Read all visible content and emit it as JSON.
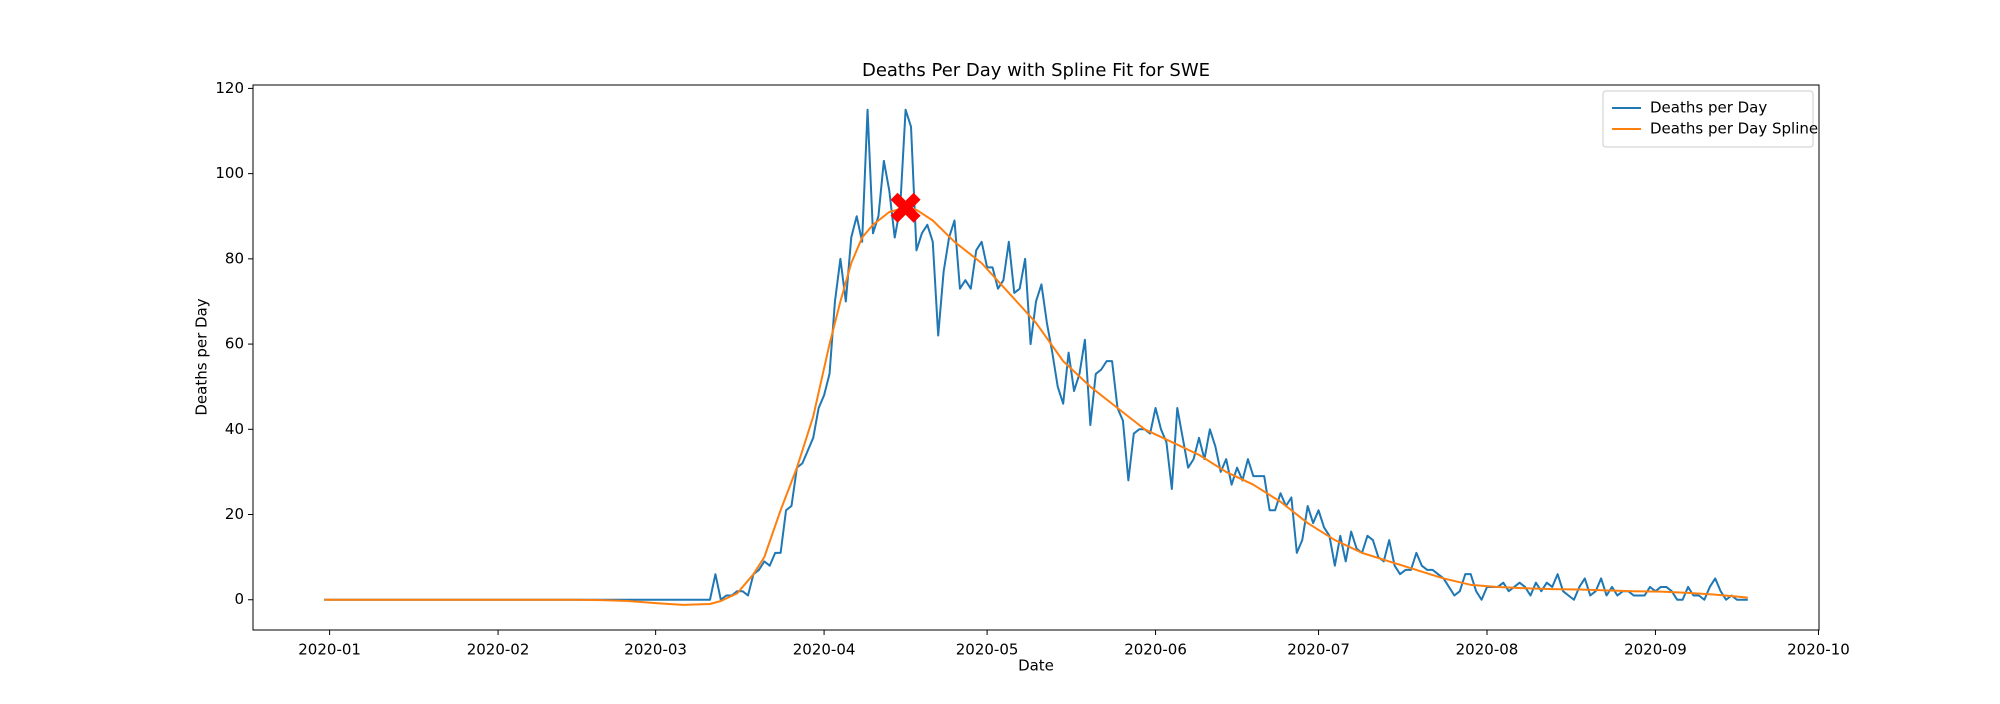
{
  "chart_data": {
    "type": "line",
    "title": "Deaths Per Day with Spline Fit for SWE",
    "x_label": "Date",
    "y_label": "Deaths per Day",
    "xlim": [
      -14.1,
      274.1
    ],
    "xticks": [
      {
        "value": 0,
        "label": "2020-01"
      },
      {
        "value": 31,
        "label": "2020-02"
      },
      {
        "value": 60,
        "label": "2020-03"
      },
      {
        "value": 91,
        "label": "2020-04"
      },
      {
        "value": 121,
        "label": "2020-05"
      },
      {
        "value": 152,
        "label": "2020-06"
      },
      {
        "value": 182,
        "label": "2020-07"
      },
      {
        "value": 213,
        "label": "2020-08"
      },
      {
        "value": 244,
        "label": "2020-09"
      },
      {
        "value": 274,
        "label": "2020-10"
      }
    ],
    "ylim": [
      -7.1,
      120.8
    ],
    "yticks": [
      0,
      20,
      40,
      60,
      80,
      100,
      120
    ],
    "legend": "upper right",
    "series": [
      {
        "name": "Deaths per Day",
        "color": "#1f77b4",
        "x": [
          -1,
          0,
          1,
          2,
          3,
          4,
          5,
          6,
          7,
          8,
          9,
          10,
          11,
          12,
          13,
          14,
          15,
          16,
          17,
          18,
          19,
          20,
          21,
          22,
          23,
          24,
          25,
          26,
          27,
          28,
          29,
          30,
          31,
          32,
          33,
          34,
          35,
          36,
          37,
          38,
          39,
          40,
          41,
          42,
          43,
          44,
          45,
          46,
          47,
          48,
          49,
          50,
          51,
          52,
          53,
          54,
          55,
          56,
          57,
          58,
          59,
          60,
          61,
          62,
          63,
          64,
          65,
          66,
          67,
          68,
          69,
          70,
          71,
          72,
          73,
          74,
          75,
          76,
          77,
          78,
          79,
          80,
          81,
          82,
          83,
          84,
          85,
          86,
          87,
          88,
          89,
          90,
          91,
          92,
          93,
          94,
          95,
          96,
          97,
          98,
          99,
          100,
          101,
          102,
          103,
          104,
          105,
          106,
          107,
          108,
          109,
          110,
          111,
          112,
          113,
          114,
          115,
          116,
          117,
          118,
          119,
          120,
          121,
          122,
          123,
          124,
          125,
          126,
          127,
          128,
          129,
          130,
          131,
          132,
          133,
          134,
          135,
          136,
          137,
          138,
          139,
          140,
          141,
          142,
          143,
          144,
          145,
          146,
          147,
          148,
          149,
          150,
          151,
          152,
          153,
          154,
          155,
          156,
          157,
          158,
          159,
          160,
          161,
          162,
          163,
          164,
          165,
          166,
          167,
          168,
          169,
          170,
          171,
          172,
          173,
          174,
          175,
          176,
          177,
          178,
          179,
          180,
          181,
          182,
          183,
          184,
          185,
          186,
          187,
          188,
          189,
          190,
          191,
          192,
          193,
          194,
          195,
          196,
          197,
          198,
          199,
          200,
          201,
          202,
          203,
          204,
          205,
          206,
          207,
          208,
          209,
          210,
          211,
          212,
          213,
          214,
          215,
          216,
          217,
          218,
          219,
          220,
          221,
          222,
          223,
          224,
          225,
          226,
          227,
          228,
          229,
          230,
          231,
          232,
          233,
          234,
          235,
          236,
          237,
          238,
          239,
          240,
          241,
          242,
          243,
          244,
          245,
          246,
          247,
          248,
          249,
          250,
          251,
          252,
          253,
          254,
          255,
          256,
          257,
          258,
          259,
          260,
          261
        ],
        "values": [
          0,
          0,
          0,
          0,
          0,
          0,
          0,
          0,
          0,
          0,
          0,
          0,
          0,
          0,
          0,
          0,
          0,
          0,
          0,
          0,
          0,
          0,
          0,
          0,
          0,
          0,
          0,
          0,
          0,
          0,
          0,
          0,
          0,
          0,
          0,
          0,
          0,
          0,
          0,
          0,
          0,
          0,
          0,
          0,
          0,
          0,
          0,
          0,
          0,
          0,
          0,
          0,
          0,
          0,
          0,
          0,
          0,
          0,
          0,
          0,
          0,
          0,
          0,
          0,
          0,
          0,
          0,
          0,
          0,
          0,
          0,
          0,
          6,
          0,
          1,
          1,
          2,
          2,
          1,
          6,
          7,
          9,
          8,
          11,
          11,
          21,
          22,
          31,
          32,
          35,
          38,
          45,
          48,
          53,
          70,
          80,
          70,
          85,
          90,
          84,
          115,
          86,
          90,
          103,
          96,
          85,
          92,
          115,
          111,
          82,
          86,
          88,
          84,
          62,
          77,
          85,
          89,
          73,
          75,
          73,
          82,
          84,
          78,
          78,
          73,
          75,
          84,
          72,
          73,
          80,
          60,
          70,
          74,
          65,
          58,
          50,
          46,
          58,
          49,
          53,
          61,
          41,
          53,
          54,
          56,
          56,
          45,
          42,
          28,
          39,
          40,
          40,
          39,
          45,
          40,
          37,
          26,
          45,
          38,
          31,
          33,
          38,
          33,
          40,
          36,
          30,
          33,
          27,
          31,
          28,
          33,
          29,
          29,
          29,
          21,
          21,
          25,
          22,
          24,
          11,
          14,
          22,
          18,
          21,
          17,
          15,
          8,
          15,
          9,
          16,
          12,
          11,
          15,
          14,
          10,
          9,
          14,
          8,
          6,
          7,
          7,
          11,
          8,
          7,
          7,
          6,
          5,
          3,
          1,
          2,
          6,
          6,
          2,
          0,
          3,
          3,
          3,
          4,
          2,
          3,
          4,
          3,
          1,
          4,
          2,
          4,
          3,
          6,
          2,
          1,
          0,
          3,
          5,
          1,
          2,
          5,
          1,
          3,
          1,
          2,
          2,
          1,
          1,
          1,
          3,
          2,
          3,
          3,
          2,
          0,
          0,
          3,
          1,
          1,
          0,
          3,
          5,
          2,
          0,
          1,
          0,
          0,
          0
        ]
      },
      {
        "name": "Deaths per Day Spline",
        "color": "#ff7f0e",
        "x": [
          -1,
          5,
          10,
          15,
          20,
          25,
          30,
          35,
          40,
          45,
          50,
          55,
          60,
          65,
          70,
          72,
          75,
          78,
          80,
          83,
          86,
          89,
          92,
          94,
          96,
          98,
          100,
          103,
          106,
          108,
          111,
          115,
          120,
          125,
          130,
          135,
          140,
          145,
          150,
          155,
          160,
          165,
          170,
          175,
          180,
          185,
          190,
          195,
          200,
          205,
          210,
          215,
          220,
          225,
          230,
          235,
          240,
          245,
          250,
          255,
          261
        ],
        "values": [
          0,
          0,
          0,
          0,
          0,
          0,
          0,
          0,
          0,
          0,
          -0.1,
          -0.3,
          -0.8,
          -1.2,
          -1.0,
          -0.3,
          1.5,
          6,
          10,
          21,
          31,
          43,
          60,
          70,
          79,
          85,
          88,
          91,
          92,
          91.5,
          89,
          84,
          79,
          72,
          65,
          56,
          50,
          45,
          40,
          37,
          34,
          30,
          27,
          23,
          18,
          14,
          11,
          9,
          7,
          5,
          3.5,
          3,
          2.7,
          2.5,
          2.4,
          2.2,
          2,
          1.9,
          1.6,
          1.2,
          0.5
        ]
      }
    ],
    "peak": {
      "x": 106,
      "y": 92,
      "color": "#ff0000"
    }
  }
}
